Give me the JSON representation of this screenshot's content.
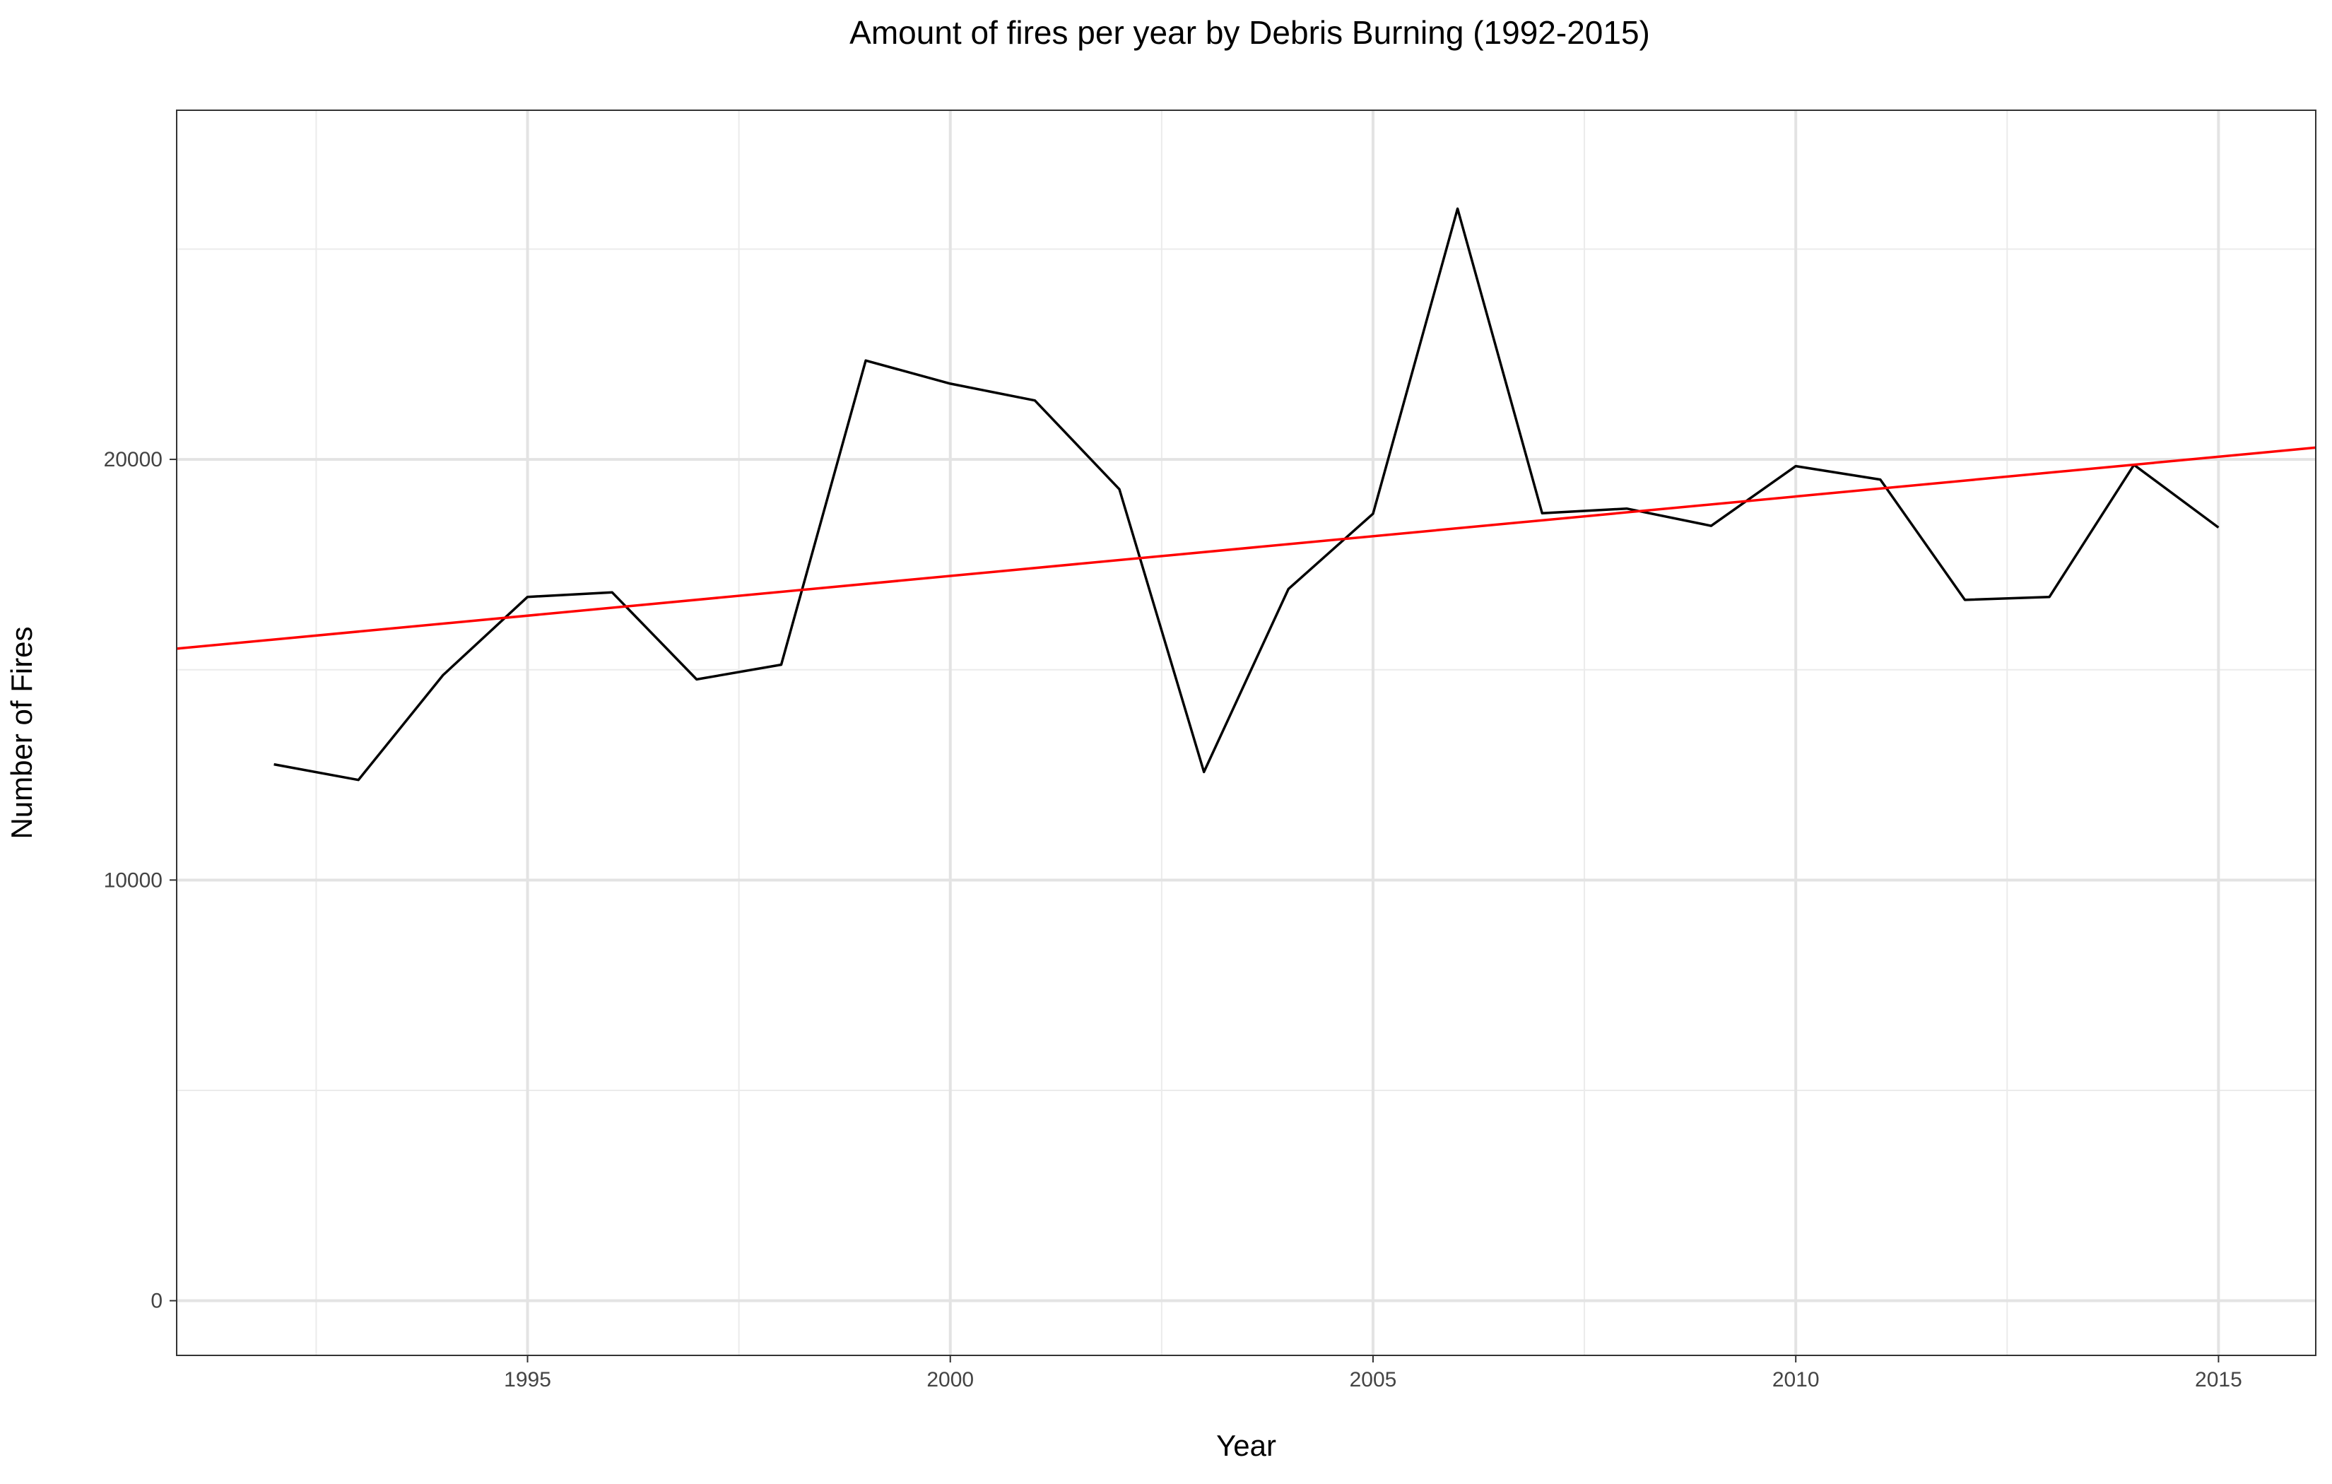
{
  "chart_data": {
    "type": "line",
    "title": "Amount of fires per year by Debris Burning (1992-2015)",
    "xlabel": "Year",
    "ylabel": "Number of Fires",
    "xlim": [
      1990.85,
      2016.15
    ],
    "ylim": [
      -1300,
      28300
    ],
    "x_ticks": [
      1995,
      2000,
      2005,
      2010,
      2015
    ],
    "x_tick_labels": [
      "1995",
      "2000",
      "2005",
      "2010",
      "2015"
    ],
    "x_minor_ticks": [
      1992.5,
      1997.5,
      2002.5,
      2007.5,
      2012.5
    ],
    "y_ticks": [
      0,
      10000,
      20000
    ],
    "y_tick_labels": [
      "0",
      "10000",
      "20000"
    ],
    "y_minor_ticks": [
      5000,
      15000,
      25000
    ],
    "grid": true,
    "series": [
      {
        "color": "#000000",
        "x": [
          1992,
          1993,
          1994,
          1995,
          1996,
          1997,
          1998,
          1999,
          2000,
          2001,
          2002,
          2003,
          2004,
          2005,
          2006,
          2007,
          2008,
          2009,
          2010,
          2011,
          2012,
          2013,
          2014,
          2015
        ],
        "values": [
          12750,
          12380,
          14870,
          16730,
          16840,
          14770,
          15120,
          22350,
          21800,
          21400,
          19290,
          12570,
          16920,
          18710,
          25960,
          18720,
          18830,
          18420,
          19840,
          19520,
          16660,
          16730,
          19870,
          18380
        ]
      },
      {
        "color": "#ff0000",
        "kind": "trend",
        "x": [
          1990.85,
          2016.15
        ],
        "values": [
          15500,
          20280
        ]
      }
    ]
  }
}
